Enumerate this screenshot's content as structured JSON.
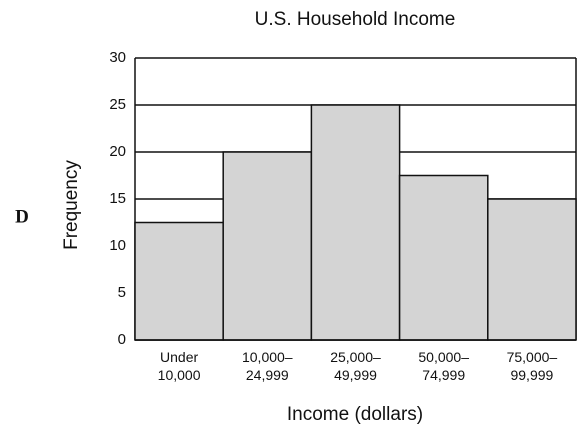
{
  "chart_data": {
    "type": "bar",
    "title": "U.S. Household Income",
    "choice_label": "D",
    "xlabel": "Income (dollars)",
    "ylabel": "Frequency",
    "categories": [
      [
        "Under",
        "10,000"
      ],
      [
        "10,000–",
        "24,999"
      ],
      [
        "25,000–",
        "49,999"
      ],
      [
        "50,000–",
        "74,999"
      ],
      [
        "75,000–",
        "99,999"
      ]
    ],
    "values": [
      12.5,
      20,
      25,
      17.5,
      15
    ],
    "color": "#d4d4d4",
    "ylim": [
      0,
      30
    ],
    "yticks": [
      0,
      5,
      10,
      15,
      20,
      25,
      30
    ],
    "grid": true
  }
}
